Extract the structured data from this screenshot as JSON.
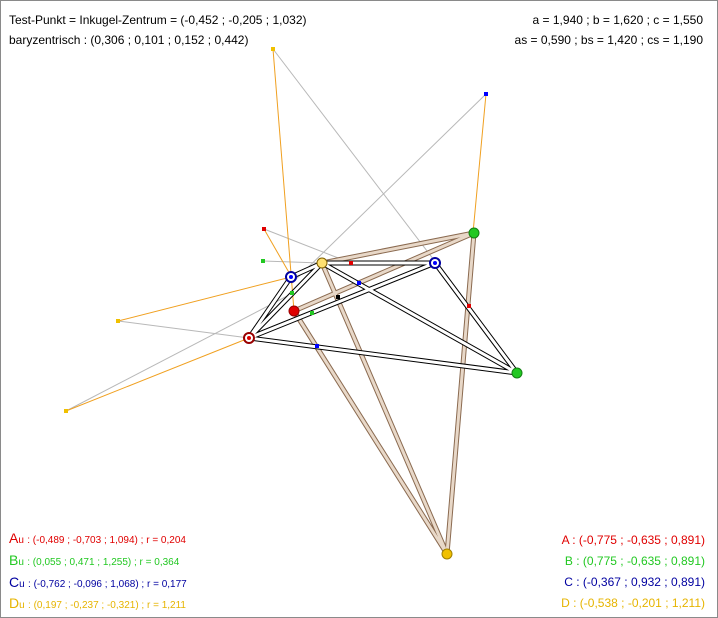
{
  "header": {
    "testpoint": "Test-Punkt = Inkugel-Zentrum = (-0,452 ; -0,205 ; 1,032)",
    "barycentric": "baryzentrisch : (0,306 ; 0,101 ; 0,152 ; 0,442)",
    "edges1": "a  = 1,940 ; b  = 1,620 ; c  = 1,550",
    "edges2": "as = 0,590 ; bs = 1,420 ; cs = 1,190"
  },
  "centers": [
    {
      "letter": "A",
      "sub": "u",
      "text": ": (-0,489 ; -0,703 ; 1,094) ; r = 0,204",
      "color": "#e00000"
    },
    {
      "letter": "B",
      "sub": "u",
      "text": ": (0,055 ; 0,471 ; 1,255) ; r = 0,364",
      "color": "#22c822"
    },
    {
      "letter": "C",
      "sub": "u",
      "text": ": (-0,762 ; -0,096 ; 1,068) ; r = 0,177",
      "color": "#0000a0"
    },
    {
      "letter": "D",
      "sub": "u",
      "text": ": (0,197 ; -0,237 ; -0,321) ; r = 1,211",
      "color": "#e6b400"
    }
  ],
  "vertices": [
    {
      "label": "A : (-0,775 ; -0,635 ; 0,891)",
      "color": "#e00000"
    },
    {
      "label": "B : (0,775 ; -0,635 ; 0,891)",
      "color": "#22c822"
    },
    {
      "label": "C : (-0,367 ; 0,932 ; 0,891)",
      "color": "#0000a0"
    },
    {
      "label": "D : (-0,538 ; -0,201 ; 1,211)",
      "color": "#e6b400"
    }
  ],
  "colors": {
    "orange": "#f0a020",
    "gray": "#b8b8b8",
    "tube": "#c8a890"
  }
}
